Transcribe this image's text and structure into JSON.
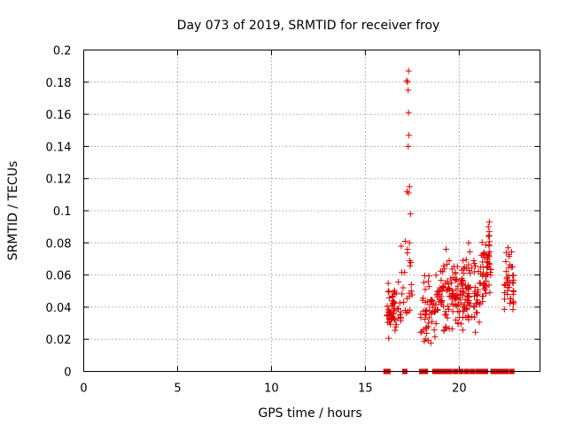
{
  "chart_data": {
    "type": "scatter",
    "title": "Day 073 of 2019, SRMTID for receiver froy",
    "xlabel": "GPS time / hours",
    "ylabel": "SRMTID / TECUs",
    "xlim": [
      0,
      24.3
    ],
    "ylim": [
      0,
      0.2
    ],
    "xticks": [
      0,
      5,
      10,
      15,
      20
    ],
    "xtick_labels": [
      "0",
      "5",
      "10",
      "15",
      "20"
    ],
    "yticks": [
      0,
      0.02,
      0.04,
      0.06,
      0.08,
      0.1,
      0.12,
      0.14,
      0.16,
      0.18,
      0.2
    ],
    "ytick_labels": [
      "0",
      "0.02",
      "0.04",
      "0.06",
      "0.08",
      "0.1",
      "0.12",
      "0.14",
      "0.16",
      "0.18",
      "0.2"
    ],
    "grid": true,
    "legend": "none",
    "marker_color": "#e00000",
    "series": [
      {
        "name": "SRMTID",
        "marker": "plus",
        "clusters": [
          {
            "x_range": [
              16.1,
              16.9
            ],
            "y_range": [
              0.02,
              0.057
            ],
            "count": 60
          },
          {
            "x_range": [
              16.9,
              17.5
            ],
            "y_range": [
              0.025,
              0.081
            ],
            "count": 20
          },
          {
            "x_range": [
              17.9,
              18.9
            ],
            "y_range": [
              0.015,
              0.063
            ],
            "count": 60
          },
          {
            "x_range": [
              18.9,
              20.1
            ],
            "y_range": [
              0.018,
              0.076
            ],
            "count": 90
          },
          {
            "x_range": [
              20.1,
              21.1
            ],
            "y_range": [
              0.02,
              0.08
            ],
            "count": 80
          },
          {
            "x_range": [
              21.1,
              21.7
            ],
            "y_range": [
              0.04,
              0.092
            ],
            "count": 55
          },
          {
            "x_range": [
              22.4,
              22.9
            ],
            "y_range": [
              0.03,
              0.078
            ],
            "count": 40
          }
        ],
        "points": [
          [
            17.3,
            0.187
          ],
          [
            17.2,
            0.181
          ],
          [
            17.25,
            0.18
          ],
          [
            17.28,
            0.175
          ],
          [
            17.3,
            0.161
          ],
          [
            17.32,
            0.147
          ],
          [
            17.28,
            0.14
          ],
          [
            17.35,
            0.115
          ],
          [
            17.22,
            0.112
          ],
          [
            17.3,
            0.111
          ],
          [
            17.4,
            0.098
          ],
          [
            17.35,
            0.08
          ],
          [
            17.12,
            0.081
          ],
          [
            17.25,
            0.076
          ],
          [
            21.6,
            0.093
          ],
          [
            21.55,
            0.09
          ],
          [
            21.6,
            0.087
          ],
          [
            20.5,
            0.08
          ],
          [
            19.3,
            0.076
          ],
          [
            20.2,
            0.069
          ],
          [
            22.6,
            0.077
          ],
          [
            22.5,
            0.074
          ]
        ]
      }
    ],
    "baseline_markers": {
      "y": 0,
      "x": [
        16.1,
        16.2,
        17.1,
        18.0,
        18.2,
        18.7,
        18.9,
        19.1,
        19.3,
        19.5,
        19.8,
        20.1,
        20.4,
        20.7,
        21.0,
        21.2,
        21.4,
        21.8,
        21.9,
        22.0,
        22.1,
        22.2,
        22.3,
        22.4,
        22.5,
        22.8
      ]
    }
  }
}
